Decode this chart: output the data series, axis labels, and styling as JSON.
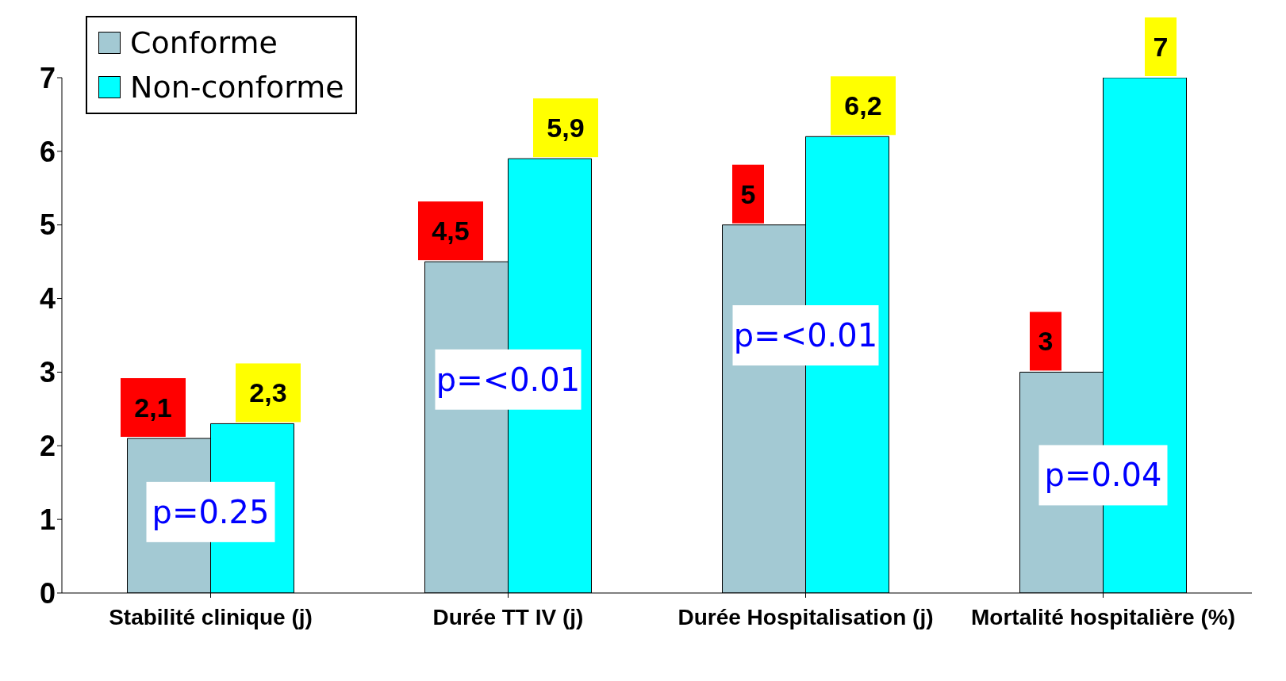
{
  "chart_data": {
    "type": "bar",
    "categories": [
      "Stabilité clinique (j)",
      "Durée TT IV (j)",
      "Durée Hospitalisation (j)",
      "Mortalité hospitalière (%)"
    ],
    "series": [
      {
        "name": "Conforme",
        "color": "#a3c9d3",
        "values": [
          2.1,
          4.5,
          5,
          3
        ],
        "value_labels": [
          "2,1",
          "4,5",
          "5",
          "3"
        ]
      },
      {
        "name": "Non-conforme",
        "color": "#00ffff",
        "values": [
          2.3,
          5.9,
          6.2,
          7
        ],
        "value_labels": [
          "2,3",
          "5,9",
          "6,2",
          "7"
        ]
      }
    ],
    "ylim": [
      0,
      7
    ],
    "yticks": [
      0,
      1,
      2,
      3,
      4,
      5,
      6,
      7
    ],
    "grid": false,
    "legend": "top left",
    "annotations": [
      {
        "text": "p=0.25",
        "x": "Stabilité clinique (j)",
        "y": 1.1
      },
      {
        "text": "p=<0.01",
        "x": "Durée TT IV (j)",
        "y": 2.9
      },
      {
        "text": "p=<0.01",
        "x": "Durée Hospitalisation (j)",
        "y": 3.5
      },
      {
        "text": "p=0.04",
        "x": "Mortalité hospitalière (%)",
        "y": 1.6
      }
    ]
  }
}
